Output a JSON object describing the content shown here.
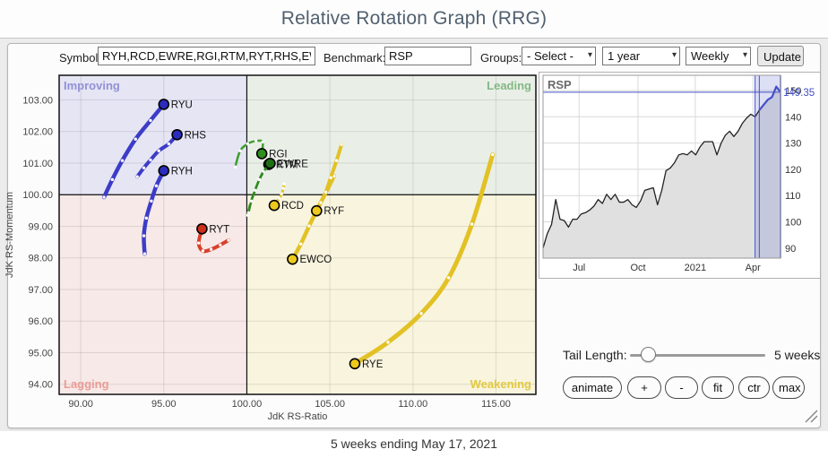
{
  "header": {
    "title": "Relative Rotation Graph (RRG)"
  },
  "toolbar": {
    "symbols_label": "Symbols:",
    "symbols_value": "RYH,RCD,EWRE,RGI,RTM,RYT,RHS,EWCO,RYF,",
    "benchmark_label": "Benchmark:",
    "benchmark_value": "RSP",
    "groups_label": "Groups:",
    "groups_selected": "- Select -",
    "period_selected": "1 year",
    "frequency_selected": "Weekly",
    "update_label": "Update",
    "chevron": "▾"
  },
  "controls": {
    "tail_length_label": "Tail Length:",
    "tail_length_value": "5 weeks",
    "buttons": [
      "animate",
      "+",
      "-",
      "fit",
      "ctr",
      "max"
    ]
  },
  "footer": {
    "caption": "5 weeks ending May 17, 2021"
  },
  "colors": {
    "accent_blue": "#4450c8",
    "improving": "#3c3cc8",
    "leading_green": "#3f9e2c",
    "lagging_red": "#d8402b",
    "weakening_yellow": "#e2c125"
  },
  "chart_data": [
    {
      "id": "rrg",
      "type": "scatter",
      "xlabel": "JdK RS-Ratio",
      "ylabel": "JdK RS-Momentum",
      "xlim": [
        88.7,
        117.4
      ],
      "ylim": [
        93.68,
        103.78
      ],
      "xticks": [
        90,
        95,
        100,
        105,
        110,
        115
      ],
      "yticks": [
        94,
        95,
        96,
        97,
        98,
        99,
        100,
        101,
        102,
        103
      ],
      "center": [
        100,
        100
      ],
      "grid": true,
      "quadrants": [
        {
          "label": "Improving",
          "position": "top-left",
          "bg": "#e5e5f4",
          "label_color": "#9191d8"
        },
        {
          "label": "Leading",
          "position": "top-right",
          "bg": "#e9efe7",
          "label_color": "#84b884"
        },
        {
          "label": "Lagging",
          "position": "bottom-left",
          "bg": "#f7e9e7",
          "label_color": "#ea9c96"
        },
        {
          "label": "Weakening",
          "position": "bottom-right",
          "bg": "#f8f4de",
          "label_color": "#e2c93e"
        }
      ],
      "series": [
        {
          "symbol": "RYE",
          "color": "#e2c125",
          "dot": "#ecc91c",
          "width": 5,
          "points": [
            [
              114.8,
              101.27
            ],
            [
              113.55,
              99.07
            ],
            [
              112.15,
              97.37
            ],
            [
              110.5,
              96.24
            ],
            [
              108.5,
              95.33
            ],
            [
              106.5,
              94.65
            ]
          ]
        },
        {
          "symbol": "EWCO",
          "color": "#e2c125",
          "dot": "#ecc91c",
          "width": 4.5,
          "points": [
            [
              105.25,
              100.59
            ],
            [
              104.75,
              100.06
            ],
            [
              104.25,
              99.55
            ],
            [
              103.75,
              99.01
            ],
            [
              103.25,
              98.44
            ],
            [
              102.75,
              97.96
            ]
          ]
        },
        {
          "symbol": "RYF",
          "color": "#e2c125",
          "dot": "#ecc91c",
          "width": 4,
          "points": [
            [
              105.7,
              101.59
            ],
            [
              105.4,
              101.08
            ],
            [
              105.05,
              100.54
            ],
            [
              104.75,
              100.08
            ],
            [
              104.45,
              99.75
            ],
            [
              104.2,
              99.49
            ]
          ]
        },
        {
          "symbol": "RCD",
          "color": "#e2c125",
          "dot": "#ecc91c",
          "width": 3,
          "points": [
            [
              102.25,
              100.34
            ],
            [
              102.2,
              100.2
            ],
            [
              102.1,
              100.03
            ],
            [
              101.95,
              99.89
            ],
            [
              101.8,
              99.77
            ],
            [
              101.65,
              99.66
            ]
          ]
        },
        {
          "symbol": "RYU",
          "color": "#3c3cc8",
          "dot": "#2b2bbd",
          "width": 4.5,
          "points": [
            [
              91.4,
              99.92
            ],
            [
              91.9,
              100.48
            ],
            [
              92.5,
              101.08
            ],
            [
              93.3,
              101.76
            ],
            [
              94.2,
              102.35
            ],
            [
              95.0,
              102.86
            ]
          ]
        },
        {
          "symbol": "RHS",
          "color": "#3c3cc8",
          "dot": "#2b2bbd",
          "width": 4,
          "points": [
            [
              93.4,
              100.57
            ],
            [
              93.8,
              100.85
            ],
            [
              94.2,
              101.1
            ],
            [
              94.7,
              101.39
            ],
            [
              95.3,
              101.61
            ],
            [
              95.8,
              101.9
            ]
          ]
        },
        {
          "symbol": "RYH",
          "color": "#3c3cc8",
          "dot": "#2b2bbd",
          "width": 4.5,
          "points": [
            [
              93.85,
              98.13
            ],
            [
              93.8,
              98.7
            ],
            [
              93.95,
              99.26
            ],
            [
              94.25,
              99.8
            ],
            [
              94.55,
              100.28
            ],
            [
              95.0,
              100.76
            ]
          ]
        },
        {
          "symbol": "RYT",
          "color": "#d8402b",
          "dot": "#cc2f1b",
          "width": 4,
          "points": [
            [
              98.9,
              98.56
            ],
            [
              98.4,
              98.41
            ],
            [
              97.85,
              98.27
            ],
            [
              97.35,
              98.22
            ],
            [
              97.1,
              98.47
            ],
            [
              97.3,
              98.92
            ]
          ]
        },
        {
          "symbol": "RGI",
          "color": "#3f9e2c",
          "dot": "#2e8f1e",
          "width": 2.5,
          "points": [
            [
              99.3,
              100.88
            ],
            [
              99.6,
              101.39
            ],
            [
              100.05,
              101.61
            ],
            [
              100.55,
              101.7
            ],
            [
              100.95,
              101.67
            ],
            [
              100.9,
              101.3
            ]
          ]
        },
        {
          "symbol": "RTM",
          "color": "#2f8a1e",
          "dot": "#1f6f14",
          "width": 2.5,
          "points": [
            [
              100.05,
              99.35
            ],
            [
              100.22,
              99.74
            ],
            [
              100.46,
              100.1
            ],
            [
              100.72,
              100.44
            ],
            [
              100.98,
              100.7
            ],
            [
              101.32,
              100.96
            ]
          ]
        },
        {
          "symbol": "EWRE",
          "color": "#2f8a1e",
          "dot": "#1f6f14",
          "width": 2.5,
          "points": [
            [
              100.1,
              99.43
            ],
            [
              100.27,
              99.8
            ],
            [
              100.5,
              100.14
            ],
            [
              100.75,
              100.48
            ],
            [
              101.0,
              100.74
            ],
            [
              101.4,
              100.99
            ]
          ]
        }
      ]
    },
    {
      "id": "price",
      "type": "area",
      "symbol": "RSP",
      "last_price": 149.35,
      "last_price_label": "149.35",
      "ylim": [
        86.2,
        155.8
      ],
      "yticks": [
        90,
        100,
        110,
        120,
        130,
        140,
        150
      ],
      "xticks": [
        {
          "label": "Jul",
          "i": 8.5
        },
        {
          "label": "Oct",
          "i": 22.4
        },
        {
          "label": "2021",
          "i": 35.9
        },
        {
          "label": "Apr",
          "i": 49.5
        }
      ],
      "highlight_from": 50,
      "blue_from": 51,
      "values": [
        90,
        95.5,
        99,
        108.5,
        101,
        100.5,
        98,
        101,
        101,
        103,
        103.5,
        104.5,
        106,
        108.5,
        107,
        110.5,
        108.5,
        110.5,
        107.5,
        107.5,
        108.5,
        106.5,
        105.5,
        108,
        112,
        112.5,
        113,
        106.5,
        112,
        119.5,
        120.5,
        122.5,
        125.5,
        126,
        125.5,
        127,
        125.5,
        128.5,
        130.5,
        130.5,
        130.5,
        125.5,
        130,
        133,
        134.5,
        132.5,
        134.5,
        137.5,
        139.5,
        141,
        140,
        142.5,
        144.5,
        146.5,
        147.5,
        151.5,
        149.35
      ]
    }
  ]
}
